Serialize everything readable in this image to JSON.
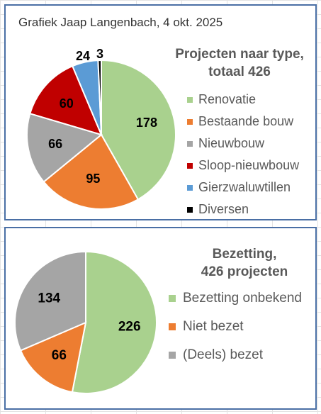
{
  "credit": "Grafiek Jaap Langenbach, 4 okt. 2025",
  "chart_data": [
    {
      "type": "pie",
      "title_lines": [
        "Projecten naar type,",
        "totaal 426"
      ],
      "categories": [
        "Renovatie",
        "Bestaande bouw",
        "Nieuwbouw",
        "Sloop-nieuwbouw",
        "Gierzwaluwtillen",
        "Diversen"
      ],
      "values": [
        178,
        95,
        66,
        60,
        24,
        3
      ],
      "colors": [
        "#a9d18e",
        "#ed7d31",
        "#a5a5a5",
        "#c00000",
        "#5b9bd5",
        "#000000"
      ],
      "legend": "right",
      "data_labels": true
    },
    {
      "type": "pie",
      "title_lines": [
        "Bezetting,",
        "426 projecten"
      ],
      "categories": [
        "Bezetting onbekend",
        "Niet bezet",
        "(Deels) bezet"
      ],
      "values": [
        226,
        66,
        134
      ],
      "colors": [
        "#a9d18e",
        "#ed7d31",
        "#a5a5a5"
      ],
      "legend": "right",
      "data_labels": true
    }
  ]
}
